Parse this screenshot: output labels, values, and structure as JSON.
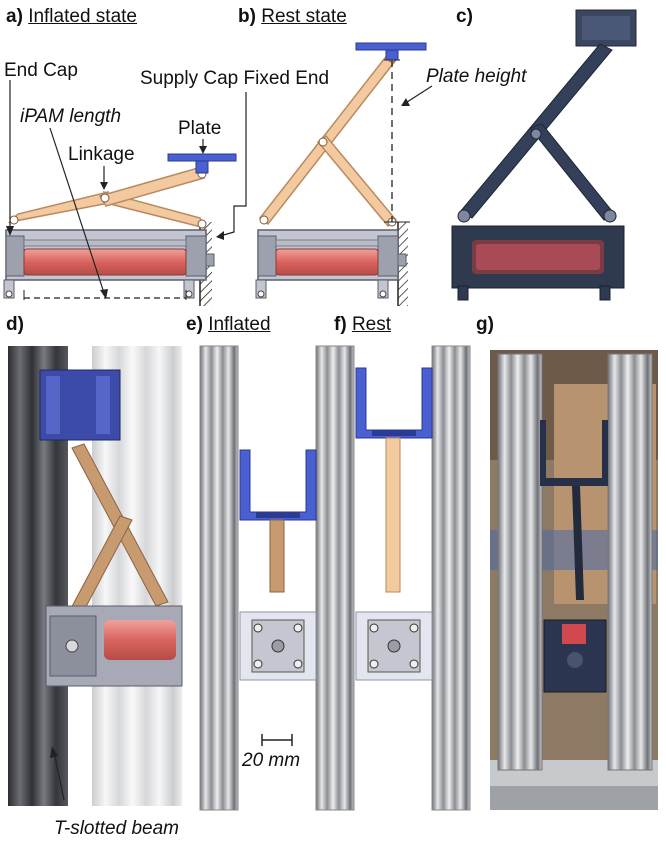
{
  "panels": {
    "a": {
      "letter": "a)",
      "title": "Inflated state"
    },
    "b": {
      "letter": "b)",
      "title": "Rest state"
    },
    "c": {
      "letter": "c)"
    },
    "d": {
      "letter": "d)"
    },
    "e": {
      "letter": "e)",
      "title": "Inflated"
    },
    "f": {
      "letter": "f)",
      "title": "Rest"
    },
    "g": {
      "letter": "g)"
    }
  },
  "annotations": {
    "end_cap": "End Cap",
    "ipam_length": "iPAM length",
    "linkage": "Linkage",
    "plate": "Plate",
    "supply_cap": "Supply Cap Fixed End",
    "plate_height": "Plate height",
    "t_slotted_beam": "T-slotted beam",
    "scale": "20 mm"
  },
  "colors": {
    "linkage": "#f3c9a0",
    "linkage_stroke": "#b98a5e",
    "plate": "#4a5fd0",
    "tube": "#e0736f",
    "frame": "#a9acb8",
    "beam_dark": "#5a5d63",
    "beam_light": "#cfd1d4",
    "photo_dark": "#2f3a4f"
  }
}
